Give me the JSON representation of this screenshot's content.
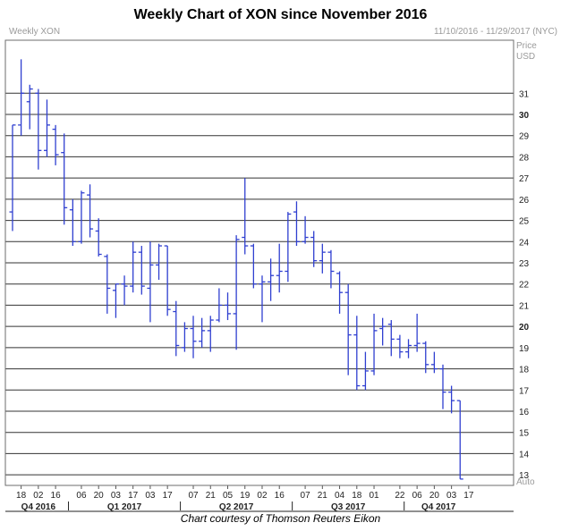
{
  "header": {
    "title": "Weekly Chart of XON since November 2016",
    "panel_label": "Weekly XON",
    "range_label": "11/10/2016 - 11/29/2017 (NYC)"
  },
  "footer": {
    "caption": "Chart courtesy of Thomson Reuters Eikon"
  },
  "chart_data": {
    "type": "ohlc",
    "title": "Weekly Chart of XON since November 2016",
    "ylabel": "Price USD",
    "yscale_note": "Auto",
    "ylim": [
      12.5,
      33.5
    ],
    "y_ticks": [
      13,
      14,
      15,
      16,
      17,
      18,
      19,
      20,
      21,
      22,
      23,
      24,
      25,
      26,
      27,
      28,
      29,
      30,
      31
    ],
    "y_ticks_bold": [
      20,
      30
    ],
    "x_tick_labels": [
      {
        "label": "18",
        "week": 1
      },
      {
        "label": "02",
        "week": 3
      },
      {
        "label": "16",
        "week": 5
      },
      {
        "label": "06",
        "week": 8
      },
      {
        "label": "20",
        "week": 10
      },
      {
        "label": "03",
        "week": 12
      },
      {
        "label": "17",
        "week": 14
      },
      {
        "label": "03",
        "week": 16
      },
      {
        "label": "17",
        "week": 18
      },
      {
        "label": "07",
        "week": 21
      },
      {
        "label": "21",
        "week": 23
      },
      {
        "label": "05",
        "week": 25
      },
      {
        "label": "19",
        "week": 27
      },
      {
        "label": "02",
        "week": 29
      },
      {
        "label": "16",
        "week": 31
      },
      {
        "label": "07",
        "week": 34
      },
      {
        "label": "21",
        "week": 36
      },
      {
        "label": "04",
        "week": 38
      },
      {
        "label": "18",
        "week": 40
      },
      {
        "label": "01",
        "week": 42
      },
      {
        "label": "22",
        "week": 45
      },
      {
        "label": "06",
        "week": 47
      },
      {
        "label": "20",
        "week": 49
      },
      {
        "label": "03",
        "week": 51
      },
      {
        "label": "17",
        "week": 53
      }
    ],
    "quarters": [
      {
        "label": "Q4 2016",
        "start_week": 0,
        "end_week": 7
      },
      {
        "label": "Q1 2017",
        "start_week": 7,
        "end_week": 20
      },
      {
        "label": "Q2 2017",
        "start_week": 20,
        "end_week": 33
      },
      {
        "label": "Q3 2017",
        "start_week": 33,
        "end_week": 46
      },
      {
        "label": "Q4 2017",
        "start_week": 46,
        "end_week": 54
      }
    ],
    "series": [
      {
        "values": [
          {
            "o": 25.4,
            "h": 29.5,
            "l": 24.5,
            "c": 29.5
          },
          {
            "o": 29.5,
            "h": 32.6,
            "l": 29.0,
            "c": 31.0
          },
          {
            "o": 30.6,
            "h": 31.4,
            "l": 29.3,
            "c": 31.2
          },
          {
            "o": 31.0,
            "h": 31.2,
            "l": 27.4,
            "c": 28.3
          },
          {
            "o": 28.3,
            "h": 30.7,
            "l": 28.0,
            "c": 29.5
          },
          {
            "o": 29.3,
            "h": 29.5,
            "l": 27.6,
            "c": 28.1
          },
          {
            "o": 28.2,
            "h": 29.1,
            "l": 24.8,
            "c": 25.6
          },
          {
            "o": 25.5,
            "h": 26.0,
            "l": 23.8,
            "c": 24.0
          },
          {
            "o": 24.0,
            "h": 26.4,
            "l": 23.9,
            "c": 26.3
          },
          {
            "o": 26.2,
            "h": 26.7,
            "l": 24.2,
            "c": 24.6
          },
          {
            "o": 24.5,
            "h": 25.1,
            "l": 23.3,
            "c": 23.4
          },
          {
            "o": 23.3,
            "h": 23.4,
            "l": 20.6,
            "c": 21.8
          },
          {
            "o": 21.7,
            "h": 22.0,
            "l": 20.4,
            "c": 22.0
          },
          {
            "o": 22.0,
            "h": 22.4,
            "l": 21.0,
            "c": 21.9
          },
          {
            "o": 21.9,
            "h": 24.0,
            "l": 21.6,
            "c": 23.5
          },
          {
            "o": 23.5,
            "h": 23.8,
            "l": 21.5,
            "c": 21.9
          },
          {
            "o": 21.8,
            "h": 24.0,
            "l": 20.2,
            "c": 22.9
          },
          {
            "o": 22.9,
            "h": 23.9,
            "l": 22.2,
            "c": 23.8
          },
          {
            "o": 23.8,
            "h": 23.8,
            "l": 20.5,
            "c": 20.8
          },
          {
            "o": 20.7,
            "h": 21.2,
            "l": 18.6,
            "c": 19.1
          },
          {
            "o": 19.0,
            "h": 20.2,
            "l": 18.8,
            "c": 19.9
          },
          {
            "o": 19.9,
            "h": 20.5,
            "l": 18.5,
            "c": 19.3
          },
          {
            "o": 19.3,
            "h": 20.4,
            "l": 19.0,
            "c": 19.8
          },
          {
            "o": 19.8,
            "h": 20.5,
            "l": 18.8,
            "c": 20.3
          },
          {
            "o": 20.3,
            "h": 21.8,
            "l": 20.2,
            "c": 21.0
          },
          {
            "o": 21.0,
            "h": 21.6,
            "l": 20.3,
            "c": 20.6
          },
          {
            "o": 20.6,
            "h": 24.3,
            "l": 18.9,
            "c": 24.1
          },
          {
            "o": 24.2,
            "h": 27.0,
            "l": 23.4,
            "c": 23.8
          },
          {
            "o": 23.8,
            "h": 23.9,
            "l": 21.8,
            "c": 22.0
          },
          {
            "o": 22.0,
            "h": 22.4,
            "l": 20.2,
            "c": 22.1
          },
          {
            "o": 22.1,
            "h": 23.2,
            "l": 21.2,
            "c": 22.4
          },
          {
            "o": 22.4,
            "h": 23.9,
            "l": 21.6,
            "c": 22.6
          },
          {
            "o": 22.6,
            "h": 25.4,
            "l": 22.1,
            "c": 25.3
          },
          {
            "o": 25.4,
            "h": 25.9,
            "l": 23.8,
            "c": 24.0
          },
          {
            "o": 24.0,
            "h": 25.2,
            "l": 23.9,
            "c": 24.2
          },
          {
            "o": 24.2,
            "h": 24.5,
            "l": 22.8,
            "c": 23.1
          },
          {
            "o": 23.1,
            "h": 23.9,
            "l": 22.5,
            "c": 23.5
          },
          {
            "o": 23.5,
            "h": 23.6,
            "l": 21.8,
            "c": 22.6
          },
          {
            "o": 22.5,
            "h": 22.6,
            "l": 20.6,
            "c": 21.6
          },
          {
            "o": 21.6,
            "h": 22.0,
            "l": 17.7,
            "c": 19.6
          },
          {
            "o": 19.6,
            "h": 20.5,
            "l": 17.0,
            "c": 17.2
          },
          {
            "o": 17.2,
            "h": 18.8,
            "l": 17.0,
            "c": 17.9
          },
          {
            "o": 17.9,
            "h": 20.6,
            "l": 17.7,
            "c": 19.8
          },
          {
            "o": 19.9,
            "h": 20.4,
            "l": 19.1,
            "c": 20.0
          },
          {
            "o": 20.1,
            "h": 20.3,
            "l": 18.6,
            "c": 19.4
          },
          {
            "o": 19.4,
            "h": 19.6,
            "l": 18.5,
            "c": 18.8
          },
          {
            "o": 18.8,
            "h": 19.4,
            "l": 18.5,
            "c": 19.1
          },
          {
            "o": 19.1,
            "h": 20.6,
            "l": 18.8,
            "c": 19.2
          },
          {
            "o": 19.2,
            "h": 19.3,
            "l": 17.8,
            "c": 18.2
          },
          {
            "o": 18.2,
            "h": 18.8,
            "l": 17.8,
            "c": 18.0
          },
          {
            "o": 18.0,
            "h": 18.2,
            "l": 16.1,
            "c": 16.9
          },
          {
            "o": 16.9,
            "h": 17.2,
            "l": 15.9,
            "c": 16.5
          },
          {
            "o": 16.5,
            "h": 16.5,
            "l": 12.8,
            "c": 12.8
          }
        ]
      }
    ],
    "colors": {
      "bars": "#2f3fd0",
      "grid": "#333333",
      "frame": "#6e6e6e"
    }
  }
}
